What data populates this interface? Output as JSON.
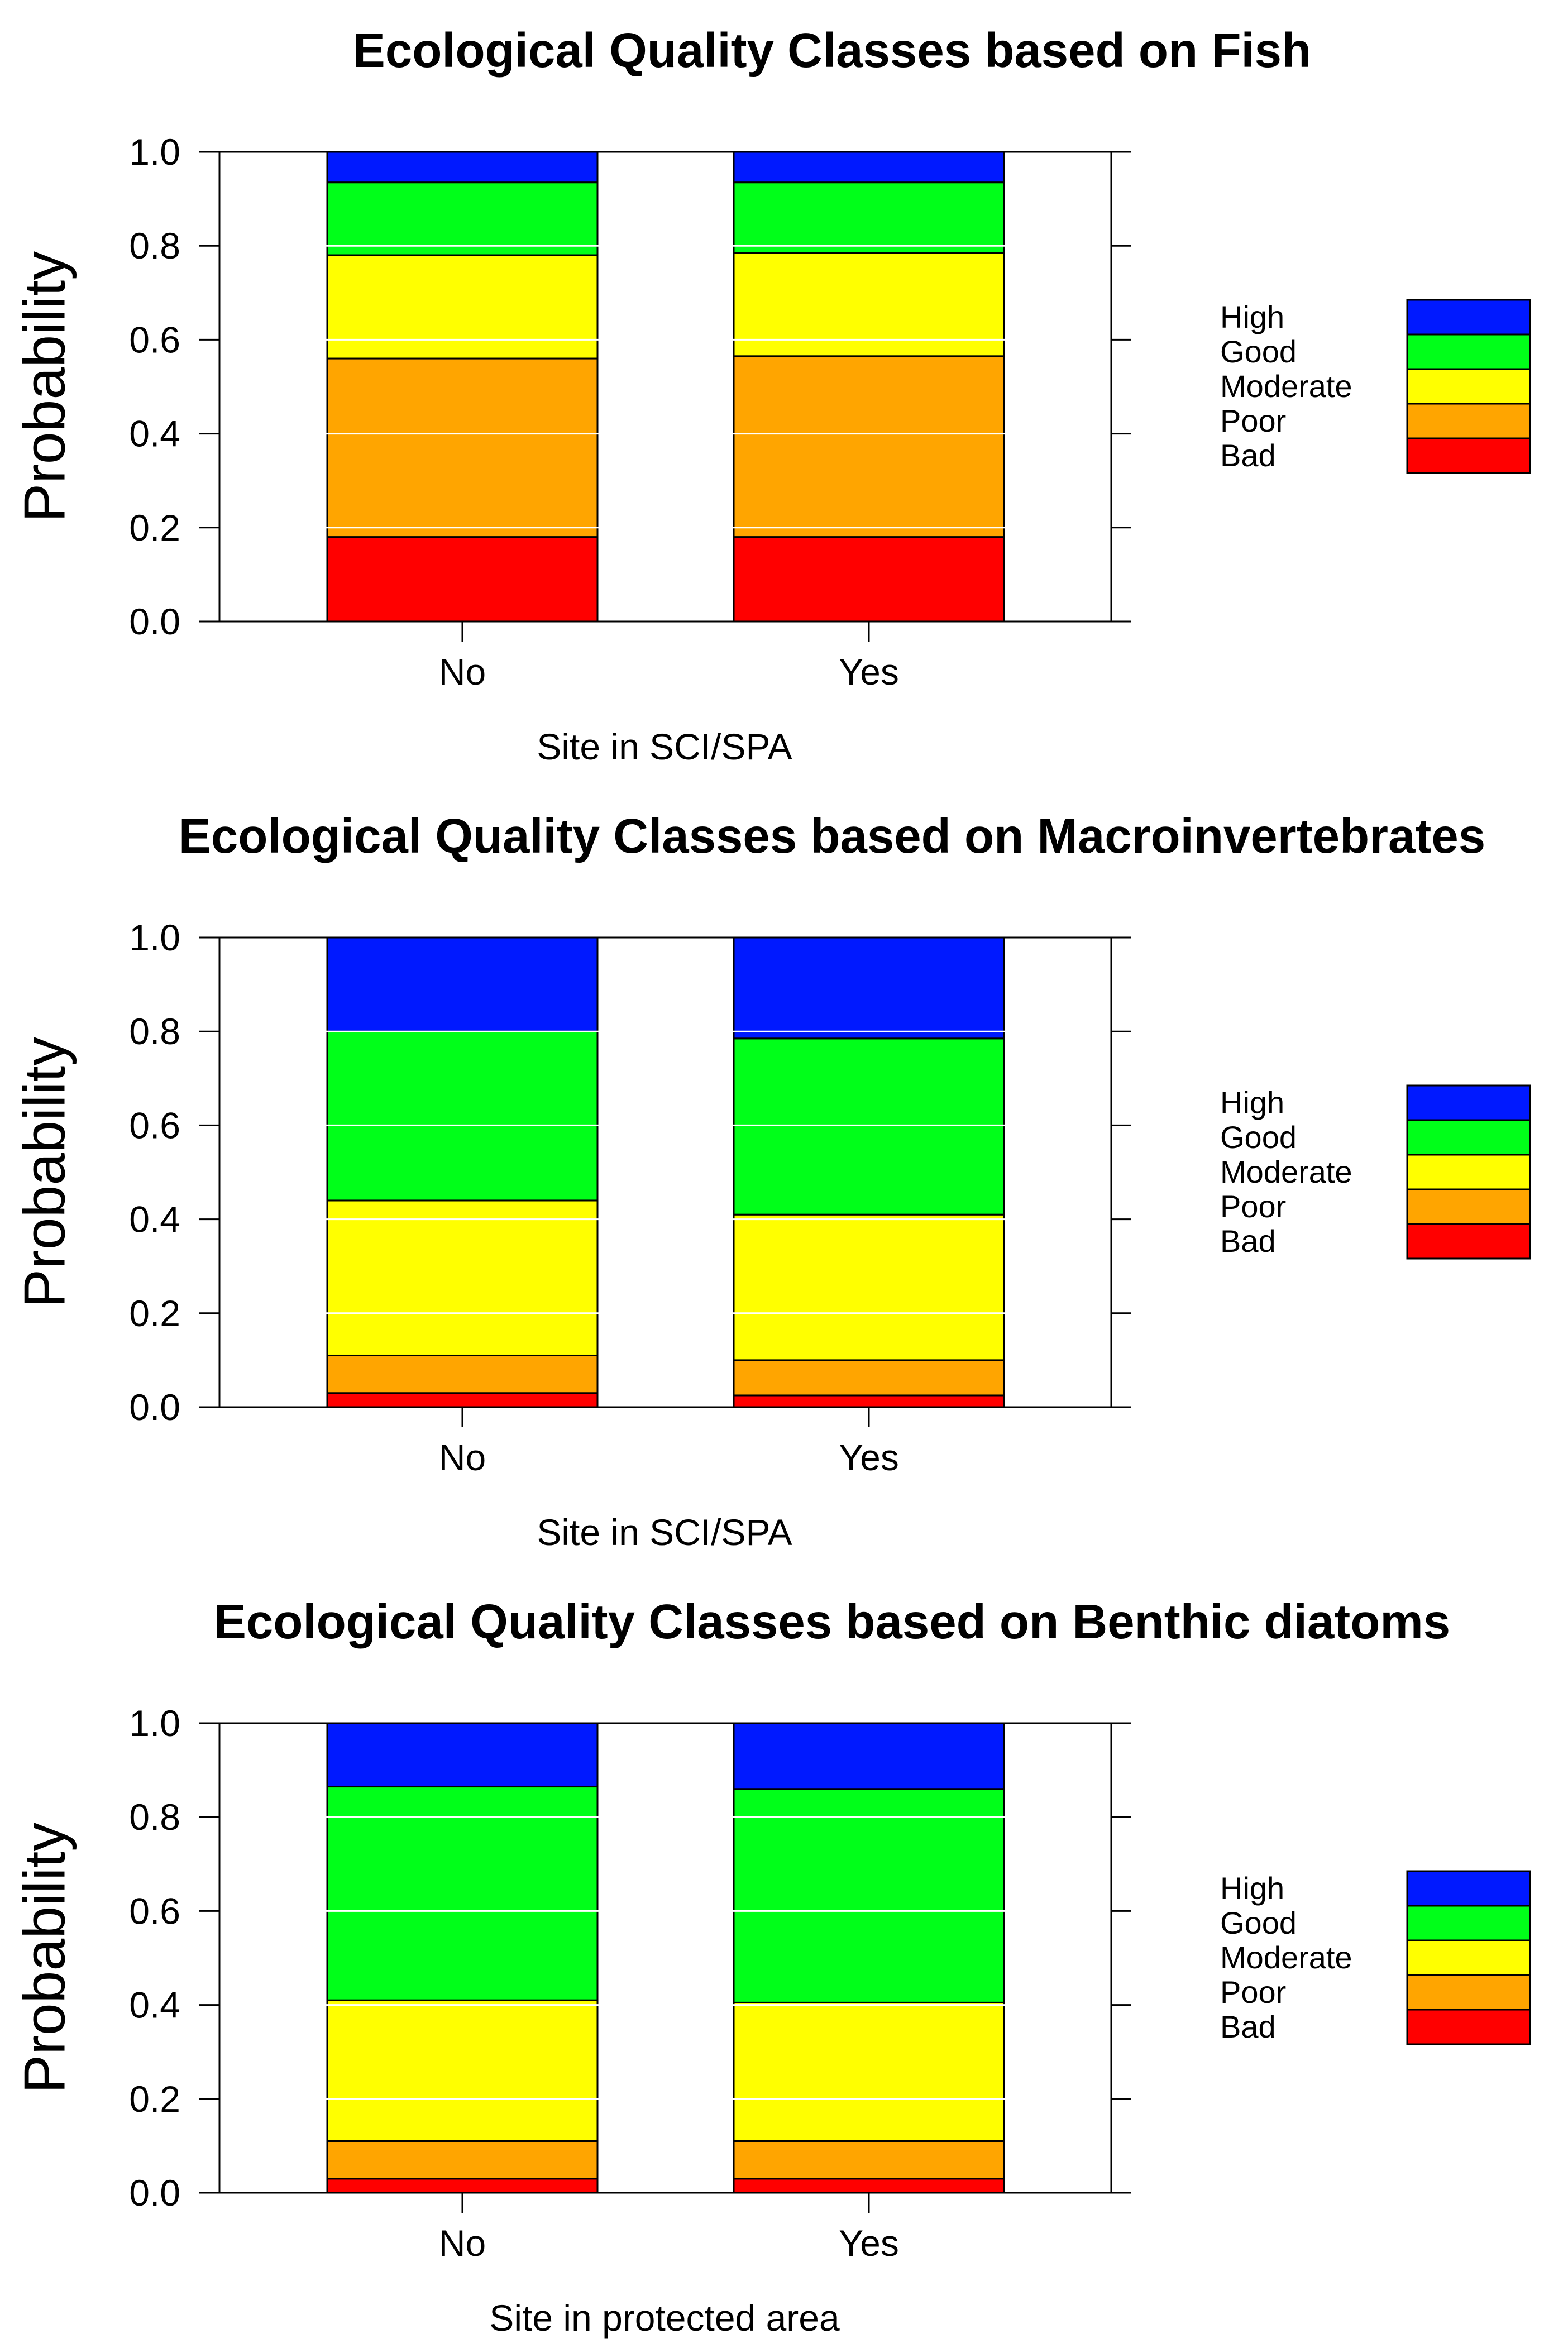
{
  "colors": {
    "High": "#0019ff",
    "Good": "#00ff19",
    "Moderate": "#ffff00",
    "Poor": "#ffa500",
    "Bad": "#ff0000"
  },
  "legend": [
    "High",
    "Good",
    "Moderate",
    "Poor",
    "Bad"
  ],
  "chart_data": [
    {
      "type": "bar",
      "stacked": true,
      "title": "Ecological Quality Classes based on Fish",
      "xlabel": "Site in SCI/SPA",
      "ylabel": "Probability",
      "ylim": [
        0,
        1
      ],
      "yticks": [
        "0.0",
        "0.2",
        "0.4",
        "0.6",
        "0.8",
        "1.0"
      ],
      "categories": [
        "No",
        "Yes"
      ],
      "series": [
        {
          "name": "Bad",
          "values": [
            0.18,
            0.18
          ]
        },
        {
          "name": "Poor",
          "values": [
            0.38,
            0.385
          ]
        },
        {
          "name": "Moderate",
          "values": [
            0.22,
            0.22
          ]
        },
        {
          "name": "Good",
          "values": [
            0.155,
            0.15
          ]
        },
        {
          "name": "High",
          "values": [
            0.065,
            0.065
          ]
        }
      ]
    },
    {
      "type": "bar",
      "stacked": true,
      "title": "Ecological Quality Classes based on Macroinvertebrates",
      "xlabel": "Site in SCI/SPA",
      "ylabel": "Probability",
      "ylim": [
        0,
        1
      ],
      "yticks": [
        "0.0",
        "0.2",
        "0.4",
        "0.6",
        "0.8",
        "1.0"
      ],
      "categories": [
        "No",
        "Yes"
      ],
      "series": [
        {
          "name": "Bad",
          "values": [
            0.03,
            0.025
          ]
        },
        {
          "name": "Poor",
          "values": [
            0.08,
            0.075
          ]
        },
        {
          "name": "Moderate",
          "values": [
            0.33,
            0.31
          ]
        },
        {
          "name": "Good",
          "values": [
            0.36,
            0.375
          ]
        },
        {
          "name": "High",
          "values": [
            0.2,
            0.215
          ]
        }
      ]
    },
    {
      "type": "bar",
      "stacked": true,
      "title": "Ecological Quality Classes based on Benthic diatoms",
      "xlabel": "Site in protected area",
      "ylabel": "Probability",
      "ylim": [
        0,
        1
      ],
      "yticks": [
        "0.0",
        "0.2",
        "0.4",
        "0.6",
        "0.8",
        "1.0"
      ],
      "categories": [
        "No",
        "Yes"
      ],
      "series": [
        {
          "name": "Bad",
          "values": [
            0.03,
            0.03
          ]
        },
        {
          "name": "Poor",
          "values": [
            0.08,
            0.08
          ]
        },
        {
          "name": "Moderate",
          "values": [
            0.3,
            0.295
          ]
        },
        {
          "name": "Good",
          "values": [
            0.455,
            0.455
          ]
        },
        {
          "name": "High",
          "values": [
            0.135,
            0.14
          ]
        }
      ]
    }
  ]
}
